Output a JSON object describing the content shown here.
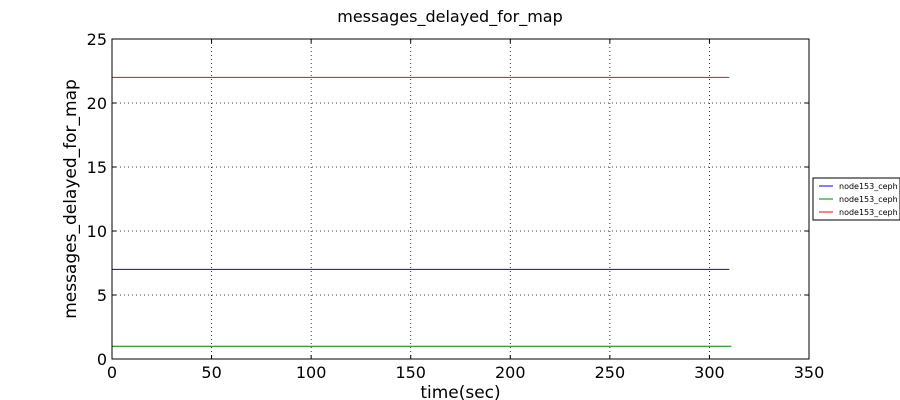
{
  "chart_data": {
    "type": "line",
    "title": "messages_delayed_for_map",
    "xlabel": "time(sec)",
    "ylabel": "messages_delayed_for_map",
    "xlim": [
      0,
      350
    ],
    "ylim": [
      0,
      25
    ],
    "xticks": [
      0,
      50,
      100,
      150,
      200,
      250,
      300,
      350
    ],
    "yticks": [
      0,
      5,
      10,
      15,
      20,
      25
    ],
    "grid": true,
    "legend_position": "right",
    "series": [
      {
        "name": "node153_ceph",
        "color": "#0000ff",
        "x": [
          0,
          310
        ],
        "y": [
          7,
          7
        ]
      },
      {
        "name": "node153_ceph",
        "color": "#008000",
        "x": [
          0,
          311
        ],
        "y": [
          1,
          1
        ]
      },
      {
        "name": "node153_ceph",
        "color": "#ff0000",
        "x": [
          0,
          310
        ],
        "y": [
          22,
          22
        ]
      }
    ]
  }
}
